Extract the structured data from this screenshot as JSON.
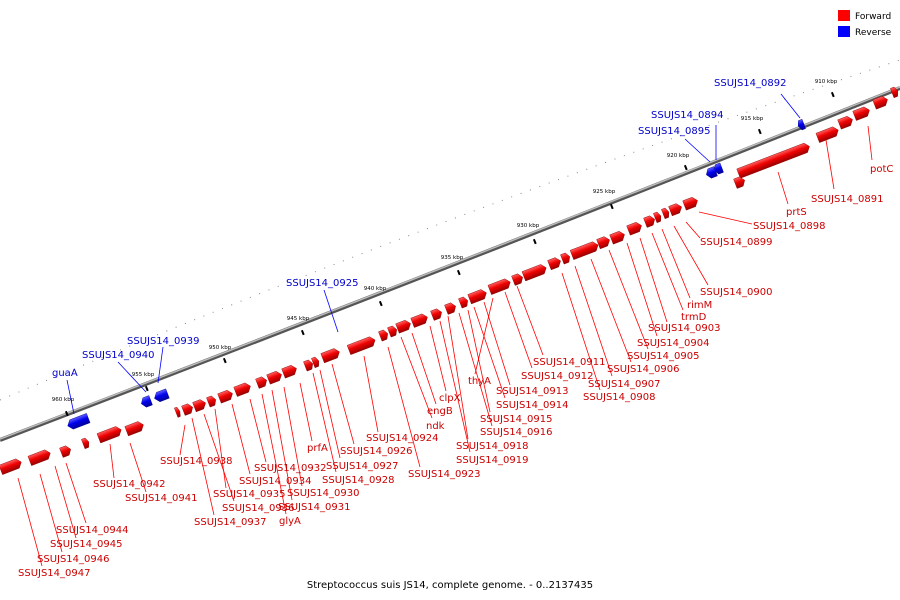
{
  "caption": "Streptococcus suis JS14, complete genome. - 0..2137435",
  "legend": {
    "forward": {
      "label": "Forward",
      "color": "#ff0000"
    },
    "reverse": {
      "label": "Reverse",
      "color": "#0000ff"
    }
  },
  "kbp_ticks": [
    {
      "label": "910 kbp",
      "kbp": 910
    },
    {
      "label": "915 kbp",
      "kbp": 915
    },
    {
      "label": "920 kbp",
      "kbp": 920
    },
    {
      "label": "925 kbp",
      "kbp": 925
    },
    {
      "label": "930 kbp",
      "kbp": 930
    },
    {
      "label": "935 kbp",
      "kbp": 935
    },
    {
      "label": "940 kbp",
      "kbp": 940
    },
    {
      "label": "945 kbp",
      "kbp": 945
    },
    {
      "label": "950 kbp",
      "kbp": 950
    },
    {
      "label": "955 kbp",
      "kbp": 955
    },
    {
      "label": "960 kbp",
      "kbp": 960
    }
  ],
  "gene_labels": [
    {
      "text": "SSUJS14_0892",
      "strand": "reverse"
    },
    {
      "text": "SSUJS14_0894",
      "strand": "reverse"
    },
    {
      "text": "SSUJS14_0895",
      "strand": "reverse"
    },
    {
      "text": "SSUJS14_0925",
      "strand": "reverse"
    },
    {
      "text": "SSUJS14_0939",
      "strand": "reverse"
    },
    {
      "text": "SSUJS14_0940",
      "strand": "reverse"
    },
    {
      "text": "guaA",
      "strand": "reverse"
    },
    {
      "text": "potC",
      "strand": "forward"
    },
    {
      "text": "SSUJS14_0891",
      "strand": "forward"
    },
    {
      "text": "prtS",
      "strand": "forward"
    },
    {
      "text": "SSUJS14_0898",
      "strand": "forward"
    },
    {
      "text": "SSUJS14_0899",
      "strand": "forward"
    },
    {
      "text": "SSUJS14_0900",
      "strand": "forward"
    },
    {
      "text": "rimM",
      "strand": "forward"
    },
    {
      "text": "trmD",
      "strand": "forward"
    },
    {
      "text": "SSUJS14_0903",
      "strand": "forward"
    },
    {
      "text": "SSUJS14_0904",
      "strand": "forward"
    },
    {
      "text": "SSUJS14_0905",
      "strand": "forward"
    },
    {
      "text": "SSUJS14_0906",
      "strand": "forward"
    },
    {
      "text": "SSUJS14_0907",
      "strand": "forward"
    },
    {
      "text": "SSUJS14_0908",
      "strand": "forward"
    },
    {
      "text": "SSUJS14_0911",
      "strand": "forward"
    },
    {
      "text": "SSUJS14_0912",
      "strand": "forward"
    },
    {
      "text": "thyA",
      "strand": "forward"
    },
    {
      "text": "SSUJS14_0913",
      "strand": "forward"
    },
    {
      "text": "SSUJS14_0914",
      "strand": "forward"
    },
    {
      "text": "SSUJS14_0915",
      "strand": "forward"
    },
    {
      "text": "SSUJS14_0916",
      "strand": "forward"
    },
    {
      "text": "clpX",
      "strand": "forward"
    },
    {
      "text": "engB",
      "strand": "forward"
    },
    {
      "text": "ndk",
      "strand": "forward"
    },
    {
      "text": "SSUJS14_0918",
      "strand": "forward"
    },
    {
      "text": "SSUJS14_0919",
      "strand": "forward"
    },
    {
      "text": "SSUJS14_0924",
      "strand": "forward"
    },
    {
      "text": "SSUJS14_0923",
      "strand": "forward"
    },
    {
      "text": "SSUJS14_0926",
      "strand": "forward"
    },
    {
      "text": "SSUJS14_0927",
      "strand": "forward"
    },
    {
      "text": "SSUJS14_0928",
      "strand": "forward"
    },
    {
      "text": "prfA",
      "strand": "forward"
    },
    {
      "text": "SSUJS14_0930",
      "strand": "forward"
    },
    {
      "text": "SSUJS14_0931",
      "strand": "forward"
    },
    {
      "text": "glyA",
      "strand": "forward"
    },
    {
      "text": "SSUJS14_0932",
      "strand": "forward"
    },
    {
      "text": "SSUJS14_0934",
      "strand": "forward"
    },
    {
      "text": "SSUJS14_0935",
      "strand": "forward"
    },
    {
      "text": "SSUJS14_0936",
      "strand": "forward"
    },
    {
      "text": "SSUJS14_0937",
      "strand": "forward"
    },
    {
      "text": "SSUJS14_0938",
      "strand": "forward"
    },
    {
      "text": "SSUJS14_0942",
      "strand": "forward"
    },
    {
      "text": "SSUJS14_0941",
      "strand": "forward"
    },
    {
      "text": "SSUJS14_0944",
      "strand": "forward"
    },
    {
      "text": "SSUJS14_0945",
      "strand": "forward"
    },
    {
      "text": "SSUJS14_0946",
      "strand": "forward"
    },
    {
      "text": "SSUJS14_0947",
      "strand": "forward"
    }
  ]
}
